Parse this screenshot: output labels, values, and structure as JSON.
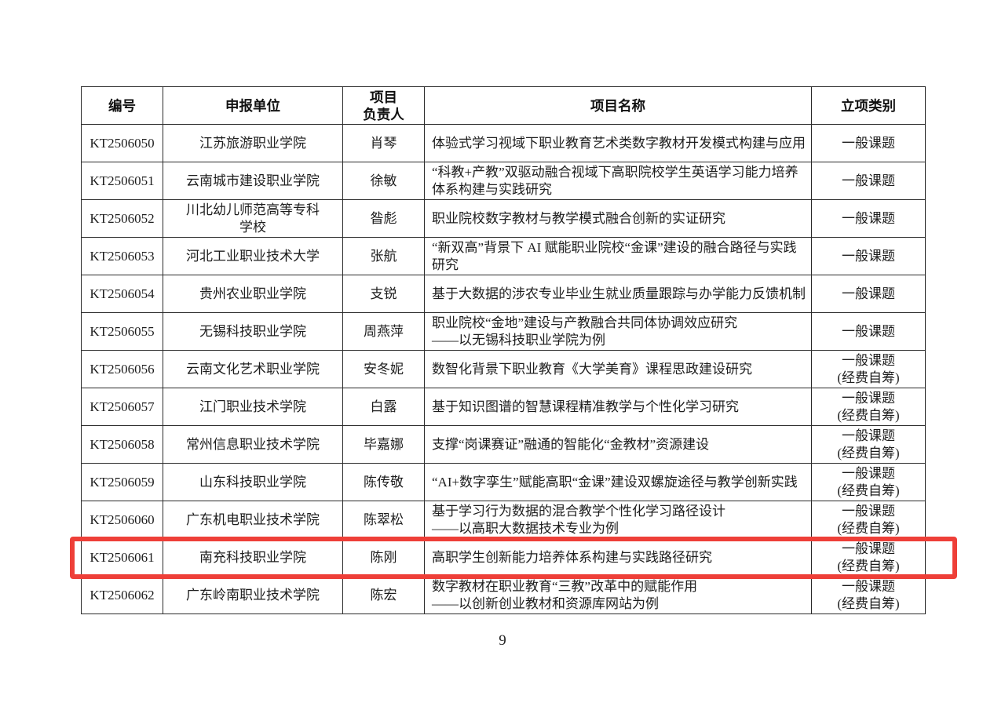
{
  "page_number": "9",
  "highlight": {
    "color": "#ee3f38",
    "row_id": "KT2506061"
  },
  "table": {
    "headers": [
      {
        "label": "编号"
      },
      {
        "label": "申报单位"
      },
      {
        "label": "项目\n负责人"
      },
      {
        "label": "项目名称"
      },
      {
        "label": "立项类别"
      }
    ],
    "rows": [
      {
        "id": "KT2506050",
        "unit": "江苏旅游职业学院",
        "leader": "肖琴",
        "title": "体验式学习视域下职业教育艺术类数字教材开发模式构建与应用",
        "category": "一般课题",
        "highlighted": false
      },
      {
        "id": "KT2506051",
        "unit": "云南城市建设职业学院",
        "leader": "徐敏",
        "title": "“科教+产教”双驱动融合视域下高职院校学生英语学习能力培养体系构建与实践研究",
        "category": "一般课题",
        "highlighted": false
      },
      {
        "id": "KT2506052",
        "unit": "川北幼儿师范高等专科学校",
        "leader": "昝彪",
        "title": "职业院校数字教材与教学模式融合创新的实证研究",
        "category": "一般课题",
        "highlighted": false
      },
      {
        "id": "KT2506053",
        "unit": "河北工业职业技术大学",
        "leader": "张航",
        "title": "“新双高”背景下 AI 赋能职业院校“金课”建设的融合路径与实践研究",
        "category": "一般课题",
        "highlighted": false
      },
      {
        "id": "KT2506054",
        "unit": "贵州农业职业学院",
        "leader": "支锐",
        "title": "基于大数据的涉农专业毕业生就业质量跟踪与办学能力反馈机制",
        "category": "一般课题",
        "highlighted": false
      },
      {
        "id": "KT2506055",
        "unit": "无锡科技职业学院",
        "leader": "周燕萍",
        "title": "职业院校“金地”建设与产教融合共同体协调效应研究\n——以无锡科技职业学院为例",
        "category": "一般课题",
        "highlighted": false
      },
      {
        "id": "KT2506056",
        "unit": "云南文化艺术职业学院",
        "leader": "安冬妮",
        "title": "数智化背景下职业教育《大学美育》课程思政建设研究",
        "category": "一般课题\n(经费自筹)",
        "highlighted": false
      },
      {
        "id": "KT2506057",
        "unit": "江门职业技术学院",
        "leader": "白露",
        "title": "基于知识图谱的智慧课程精准教学与个性化学习研究",
        "category": "一般课题\n(经费自筹)",
        "highlighted": false
      },
      {
        "id": "KT2506058",
        "unit": "常州信息职业技术学院",
        "leader": "毕嘉娜",
        "title": "支撑“岗课赛证”融通的智能化“金教材”资源建设",
        "category": "一般课题\n(经费自筹)",
        "highlighted": false
      },
      {
        "id": "KT2506059",
        "unit": "山东科技职业学院",
        "leader": "陈传敬",
        "title": "“AI+数字孪生”赋能高职“金课”建设双螺旋途径与教学创新实践",
        "category": "一般课题\n(经费自筹)",
        "highlighted": false
      },
      {
        "id": "KT2506060",
        "unit": "广东机电职业技术学院",
        "leader": "陈翠松",
        "title": "基于学习行为数据的混合教学个性化学习路径设计\n——以高职大数据技术专业为例",
        "category": "一般课题\n(经费自筹)",
        "highlighted": false
      },
      {
        "id": "KT2506061",
        "unit": "南充科技职业学院",
        "leader": "陈刚",
        "title": "高职学生创新能力培养体系构建与实践路径研究",
        "category": "一般课题\n(经费自筹)",
        "highlighted": true
      },
      {
        "id": "KT2506062",
        "unit": "广东岭南职业技术学院",
        "leader": "陈宏",
        "title": "数字教材在职业教育“三教”改革中的赋能作用\n——以创新创业教材和资源库网站为例",
        "category": "一般课题\n(经费自筹)",
        "highlighted": false
      }
    ]
  }
}
